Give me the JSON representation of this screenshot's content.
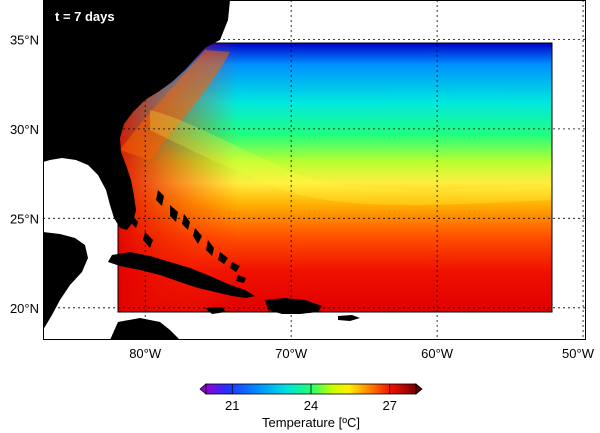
{
  "map": {
    "time_label": "t = 7 days",
    "lat_ticks": [
      {
        "value": 35,
        "label": "35°N"
      },
      {
        "value": 30,
        "label": "30°N"
      },
      {
        "value": 25,
        "label": "25°N"
      },
      {
        "value": 20,
        "label": "20°N"
      }
    ],
    "lon_ticks": [
      {
        "value": -80,
        "label": "80°W"
      },
      {
        "value": -70,
        "label": "70°W"
      },
      {
        "value": -60,
        "label": "60°W"
      },
      {
        "value": -50,
        "label": "50°W"
      }
    ],
    "lon_range": [
      -87,
      -49.8
    ],
    "lat_range": [
      18.2,
      37.2
    ],
    "model_domain": {
      "lon": [
        -81.8,
        -52.2
      ],
      "lat": [
        20.0,
        36.3
      ]
    },
    "colors": {
      "land": "#000000",
      "background": "#ffffff",
      "label_text": "#ffffff"
    }
  },
  "colorbar": {
    "title": "Temperature [ºC]",
    "ticks": [
      "21",
      "24",
      "27"
    ],
    "range": [
      20,
      28
    ],
    "tick_values": [
      21,
      24,
      27
    ],
    "colormap": [
      "#8b00ff",
      "#3b3bff",
      "#0080ff",
      "#00c8ff",
      "#00ff90",
      "#b4ff00",
      "#ffff00",
      "#ffa500",
      "#ff4000",
      "#e00000",
      "#800000"
    ]
  }
}
